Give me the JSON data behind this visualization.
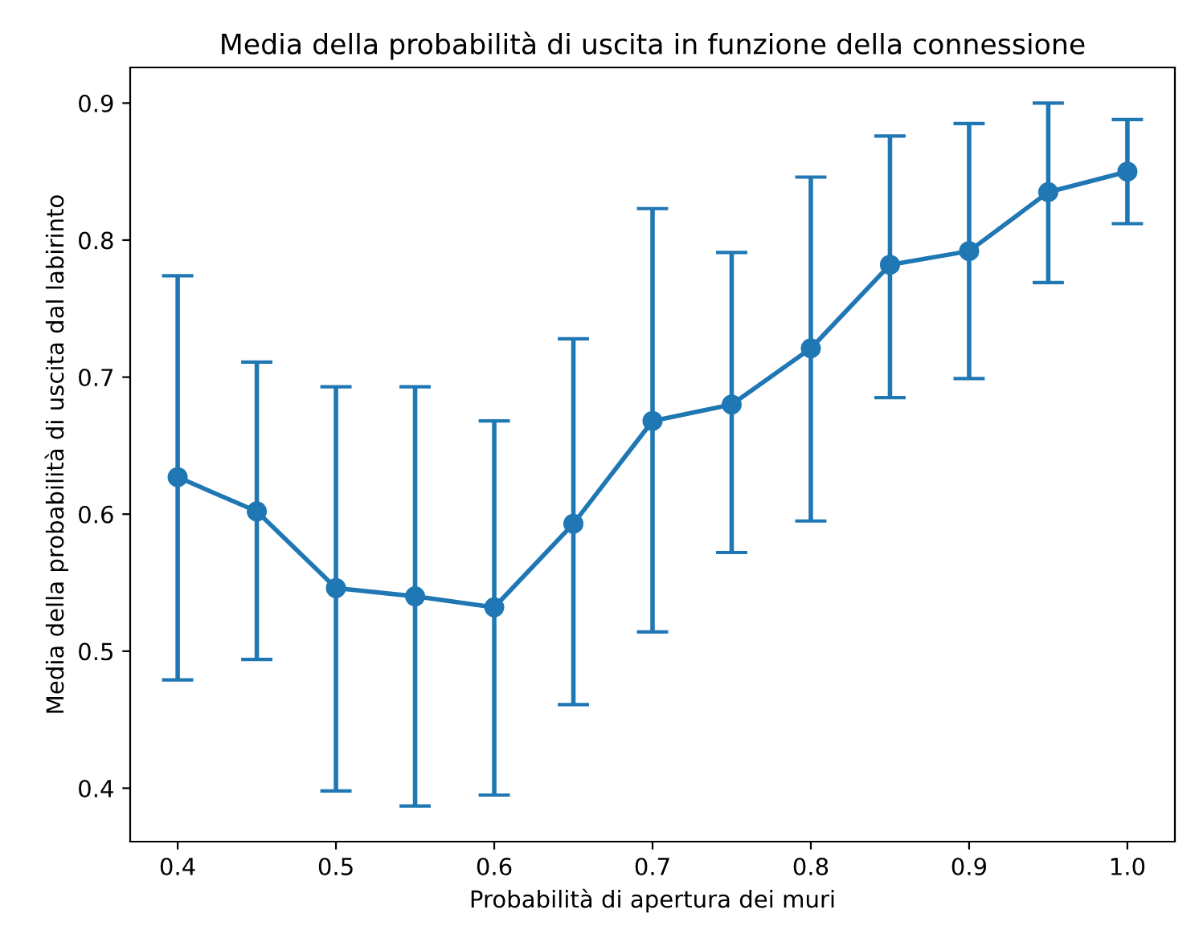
{
  "chart_data": {
    "type": "line",
    "title": "Media della probabilità di uscita in funzione della connessione",
    "xlabel": "Probabilità di apertura dei muri",
    "ylabel": "Media della probabilità di uscita dal labirinto",
    "x": [
      0.4,
      0.45,
      0.5,
      0.55,
      0.6,
      0.65,
      0.7,
      0.75,
      0.8,
      0.85,
      0.9,
      0.95,
      1.0
    ],
    "series": [
      {
        "color": "#1f77b4",
        "values": [
          0.627,
          0.602,
          0.546,
          0.54,
          0.532,
          0.593,
          0.668,
          0.68,
          0.721,
          0.782,
          0.792,
          0.835,
          0.85
        ],
        "errors": [
          [
            0.479,
            0.774
          ],
          [
            0.494,
            0.711
          ],
          [
            0.398,
            0.693
          ],
          [
            0.387,
            0.693
          ],
          [
            0.395,
            0.668
          ],
          [
            0.461,
            0.728
          ],
          [
            0.514,
            0.823
          ],
          [
            0.572,
            0.791
          ],
          [
            0.595,
            0.846
          ],
          [
            0.685,
            0.876
          ],
          [
            0.699,
            0.885
          ],
          [
            0.769,
            0.9
          ],
          [
            0.812,
            0.888
          ]
        ]
      }
    ],
    "xlim": [
      0.37,
      1.03
    ],
    "ylim": [
      0.361,
      0.926
    ],
    "xticks": [
      0.4,
      0.5,
      0.6,
      0.7,
      0.8,
      0.9,
      {
        "value": 1.0,
        "label": "1.0"
      }
    ],
    "yticks": [
      0.4,
      0.5,
      0.6,
      0.7,
      0.8,
      0.9
    ],
    "marker": "circle",
    "line_style": "solid",
    "grid": false
  }
}
